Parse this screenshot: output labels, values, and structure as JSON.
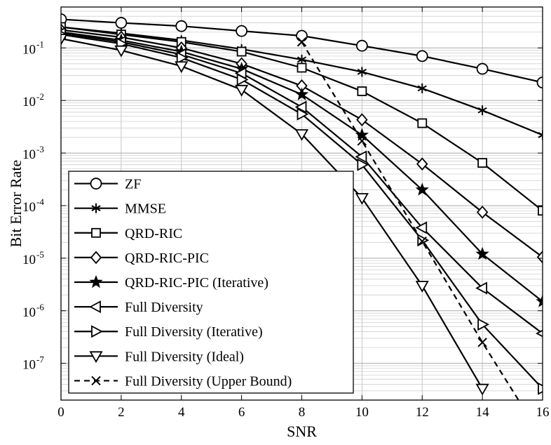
{
  "chart_data": {
    "type": "line",
    "xlabel": "SNR",
    "ylabel": "Bit Error Rate",
    "xlim": [
      0,
      16
    ],
    "ylim": [
      2e-08,
      0.6
    ],
    "y_scale": "log",
    "grid": true,
    "legend_position": "bottom-left",
    "x_ticks": [
      "0",
      "2",
      "4",
      "6",
      "8",
      "10",
      "12",
      "14",
      "16"
    ],
    "y_ticks": [
      {
        "base": "10",
        "exp": "-7",
        "value": 1e-07
      },
      {
        "base": "10",
        "exp": "-6",
        "value": 1e-06
      },
      {
        "base": "10",
        "exp": "-5",
        "value": 1e-05
      },
      {
        "base": "10",
        "exp": "-4",
        "value": 0.0001
      },
      {
        "base": "10",
        "exp": "-3",
        "value": 0.001
      },
      {
        "base": "10",
        "exp": "-2",
        "value": 0.01
      },
      {
        "base": "10",
        "exp": "-1",
        "value": 0.1
      }
    ],
    "series": [
      {
        "name": "ZF",
        "marker": "circle",
        "dashed": false,
        "x": [
          0,
          2,
          4,
          6,
          8,
          10,
          12,
          14,
          16
        ],
        "y": [
          0.35,
          0.3,
          0.26,
          0.21,
          0.17,
          0.11,
          0.07,
          0.04,
          0.022
        ]
      },
      {
        "name": "MMSE",
        "marker": "asterisk",
        "dashed": false,
        "x": [
          0,
          2,
          4,
          6,
          8,
          10,
          12,
          14,
          16
        ],
        "y": [
          0.25,
          0.19,
          0.14,
          0.095,
          0.06,
          0.035,
          0.017,
          0.0065,
          0.0022
        ]
      },
      {
        "name": "QRD-RIC",
        "marker": "square",
        "dashed": false,
        "x": [
          0,
          2,
          4,
          6,
          8,
          10,
          12,
          14,
          16
        ],
        "y": [
          0.25,
          0.18,
          0.13,
          0.085,
          0.042,
          0.015,
          0.0037,
          0.00065,
          8e-05
        ]
      },
      {
        "name": "QRD-RIC-PIC",
        "marker": "diamond",
        "dashed": false,
        "x": [
          0,
          2,
          4,
          6,
          8,
          10,
          12,
          14,
          16
        ],
        "y": [
          0.22,
          0.16,
          0.1,
          0.05,
          0.019,
          0.0043,
          0.00062,
          7.5e-05,
          1.05e-05
        ]
      },
      {
        "name": "QRD-RIC-PIC (Iterative)",
        "marker": "star",
        "dashed": false,
        "x": [
          0,
          2,
          4,
          6,
          8,
          10,
          12,
          14,
          16
        ],
        "y": [
          0.2,
          0.14,
          0.085,
          0.04,
          0.013,
          0.0022,
          0.0002,
          1.2e-05,
          1.5e-06
        ]
      },
      {
        "name": "Full Diversity",
        "marker": "triangle-left",
        "dashed": false,
        "x": [
          0,
          2,
          4,
          6,
          8,
          10,
          12,
          14,
          16
        ],
        "y": [
          0.19,
          0.13,
          0.075,
          0.033,
          0.0075,
          0.00085,
          3.8e-05,
          2.7e-06,
          3.7e-07
        ]
      },
      {
        "name": "Full Diversity (Iterative)",
        "marker": "triangle-right",
        "dashed": false,
        "x": [
          0,
          2,
          4,
          6,
          8,
          10,
          12,
          14,
          16
        ],
        "y": [
          0.18,
          0.12,
          0.065,
          0.025,
          0.0055,
          0.0006,
          2.2e-05,
          5.5e-07,
          3.3e-08
        ]
      },
      {
        "name": "Full Diversity (Ideal)",
        "marker": "triangle-down",
        "dashed": false,
        "x": [
          0,
          2,
          4,
          6,
          8,
          10,
          12,
          14
        ],
        "y": [
          0.15,
          0.09,
          0.045,
          0.016,
          0.0023,
          0.00014,
          3e-06,
          3.3e-08
        ]
      },
      {
        "name": "Full Diversity (Upper Bound)",
        "marker": "x",
        "dashed": true,
        "x": [
          8,
          10,
          12,
          14,
          15.2
        ],
        "y": [
          0.13,
          0.0017,
          2.1e-05,
          2.5e-07,
          2e-08
        ],
        "marked_points": 4
      }
    ]
  }
}
